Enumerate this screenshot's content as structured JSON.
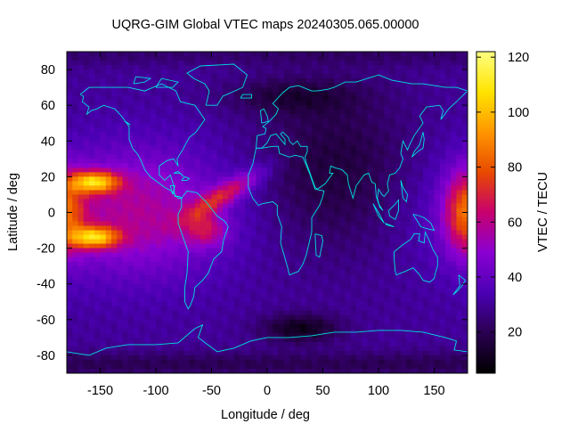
{
  "chart_data": {
    "type": "heatmap",
    "title": "UQRG-GIM Global VTEC maps 20240305.065.00000",
    "xlabel": "Longitude / deg",
    "ylabel": "Latitude / deg",
    "colorbar_label": "VTEC / TECU",
    "xlim": [
      -180,
      180
    ],
    "ylim": [
      -90,
      90
    ],
    "x_ticks": [
      -150,
      -100,
      -50,
      0,
      50,
      100,
      150
    ],
    "y_ticks": [
      -80,
      -60,
      -40,
      -20,
      0,
      20,
      40,
      60,
      80
    ],
    "colorbar_range": [
      5,
      122
    ],
    "colorbar_ticks": [
      20,
      40,
      60,
      80,
      100,
      120
    ],
    "colormap": [
      "#000000",
      "#2a0050",
      "#4b00b4",
      "#8a00d2",
      "#c8006e",
      "#e84a00",
      "#ff9600",
      "#ffe400",
      "#ffff80"
    ],
    "coastline_color": "#00e0e0",
    "regions": [
      {
        "name": "eastern Pacific equatorial anomaly crests",
        "lon": -155,
        "lat_north": 17,
        "lat_south": -14,
        "peak_vtec": 118
      },
      {
        "name": "western Pacific / date line equatorial region",
        "lon": 178,
        "lat": 0,
        "peak_vtec": 85
      },
      {
        "name": "Atlantic / South America band",
        "lon": -50,
        "lat": 5,
        "peak_vtec": 70
      },
      {
        "name": "nighttime minimum over Asia / Africa / Indian Ocean",
        "lon": 60,
        "lat": 30,
        "vtec": 20
      },
      {
        "name": "southern high-latitude minimum",
        "lon": 30,
        "lat": -65,
        "vtec": 8
      }
    ]
  }
}
